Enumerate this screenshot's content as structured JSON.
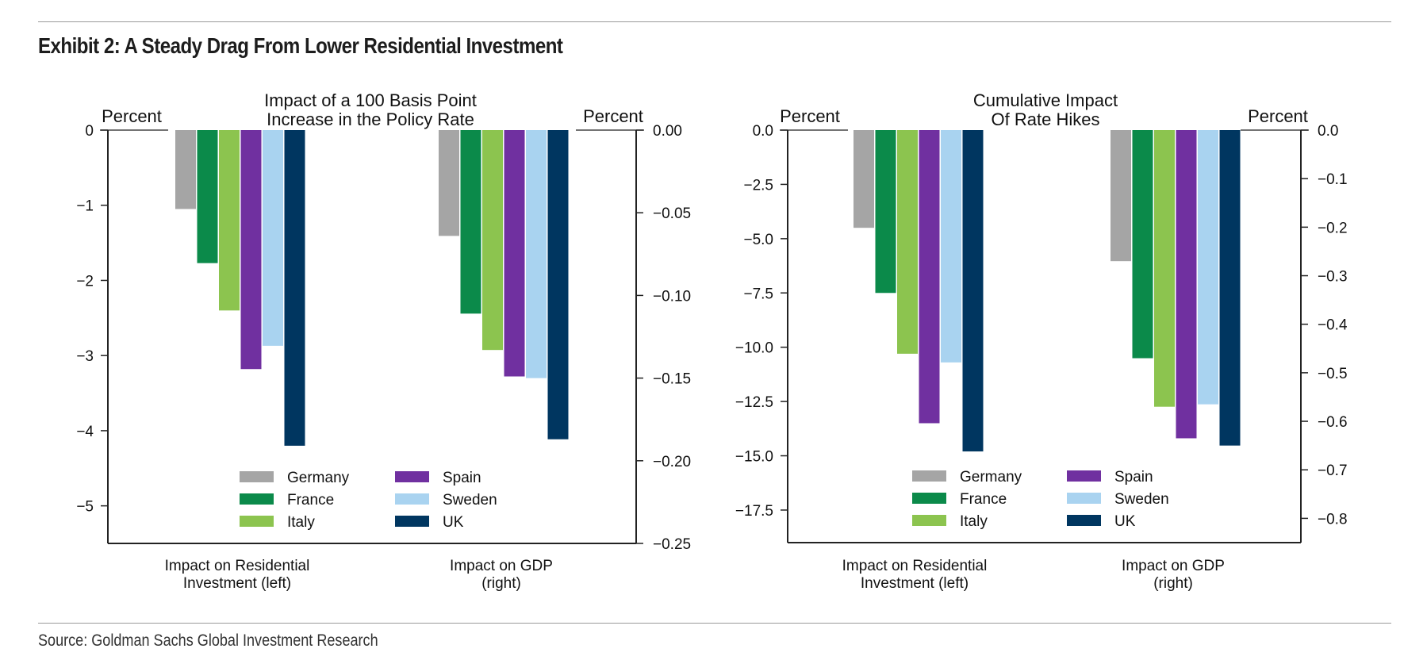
{
  "header": {
    "title": "Exhibit 2: A Steady Drag From Lower Residential Investment"
  },
  "footer": {
    "source": "Source: Goldman Sachs Global Investment Research"
  },
  "colors": {
    "Germany": "#a5a5a5",
    "France": "#0b8a4a",
    "Italy": "#8cc44f",
    "Spain": "#7030a0",
    "Sweden": "#a9d3f0",
    "UK": "#003660"
  },
  "chart_data": [
    {
      "type": "bar",
      "title": "Impact of a 100 Basis Point Increase in the Policy Rate",
      "title_lines": [
        "Impact of a 100 Basis Point",
        "Increase in the Policy Rate"
      ],
      "left_axis_label": "Percent",
      "right_axis_label": "Percent",
      "left_ylim": [
        -5.5,
        0
      ],
      "right_ylim": [
        -0.25,
        0
      ],
      "left_ticks": [
        0,
        -1,
        -2,
        -3,
        -4,
        -5
      ],
      "left_tick_labels": [
        "0",
        "−1",
        "−2",
        "−3",
        "−4",
        "−5"
      ],
      "right_ticks": [
        0,
        -0.05,
        -0.1,
        -0.15,
        -0.2,
        -0.25
      ],
      "right_tick_labels": [
        "0.00",
        "−0.05",
        "−0.10",
        "−0.15",
        "−0.20",
        "−0.25"
      ],
      "categories": [
        "Impact on Residential Investment (left)",
        "Impact on GDP (right)"
      ],
      "category_label_lines": [
        [
          "Impact on Residential",
          "Investment (left)"
        ],
        [
          "Impact on GDP",
          "(right)"
        ]
      ],
      "category_axis": [
        "left",
        "right"
      ],
      "series": [
        {
          "name": "Germany",
          "values": [
            -1.05,
            -0.064
          ]
        },
        {
          "name": "France",
          "values": [
            -1.77,
            -0.111
          ]
        },
        {
          "name": "Italy",
          "values": [
            -2.4,
            -0.133
          ]
        },
        {
          "name": "Spain",
          "values": [
            -3.18,
            -0.149
          ]
        },
        {
          "name": "Sweden",
          "values": [
            -2.87,
            -0.15
          ]
        },
        {
          "name": "UK",
          "values": [
            -4.2,
            -0.187
          ]
        }
      ],
      "legend": [
        "Germany",
        "Spain",
        "France",
        "Sweden",
        "Italy",
        "UK"
      ],
      "legend_position": "bottom"
    },
    {
      "type": "bar",
      "title": "Cumulative Impact Of Rate Hikes",
      "title_lines": [
        "Cumulative Impact",
        "Of Rate Hikes"
      ],
      "left_axis_label": "Percent",
      "right_axis_label": "Percent",
      "left_ylim": [
        -19,
        0
      ],
      "right_ylim": [
        -0.85,
        0
      ],
      "left_ticks": [
        0,
        -2.5,
        -5,
        -7.5,
        -10,
        -12.5,
        -15,
        -17.5
      ],
      "left_tick_labels": [
        "0.0",
        "−2.5",
        "−5.0",
        "−7.5",
        "−10.0",
        "−12.5",
        "−15.0",
        "−17.5"
      ],
      "right_ticks": [
        0,
        -0.1,
        -0.2,
        -0.3,
        -0.4,
        -0.5,
        -0.6,
        -0.7,
        -0.8
      ],
      "right_tick_labels": [
        "0.0",
        "−0.1",
        "−0.2",
        "−0.3",
        "−0.4",
        "−0.5",
        "−0.6",
        "−0.7",
        "−0.8"
      ],
      "categories": [
        "Impact on Residential Investment (left)",
        "Impact on GDP (right)"
      ],
      "category_label_lines": [
        [
          "Impact on Residential",
          "Investment (left)"
        ],
        [
          "Impact on GDP",
          "(right)"
        ]
      ],
      "category_axis": [
        "left",
        "right"
      ],
      "series": [
        {
          "name": "Germany",
          "values": [
            -4.5,
            -0.27
          ]
        },
        {
          "name": "France",
          "values": [
            -7.5,
            -0.47
          ]
        },
        {
          "name": "Italy",
          "values": [
            -10.3,
            -0.57
          ]
        },
        {
          "name": "Spain",
          "values": [
            -13.5,
            -0.635
          ]
        },
        {
          "name": "Sweden",
          "values": [
            -10.7,
            -0.565
          ]
        },
        {
          "name": "UK",
          "values": [
            -14.8,
            -0.65
          ]
        }
      ],
      "legend": [
        "Germany",
        "Spain",
        "France",
        "Sweden",
        "Italy",
        "UK"
      ],
      "legend_position": "bottom"
    }
  ]
}
